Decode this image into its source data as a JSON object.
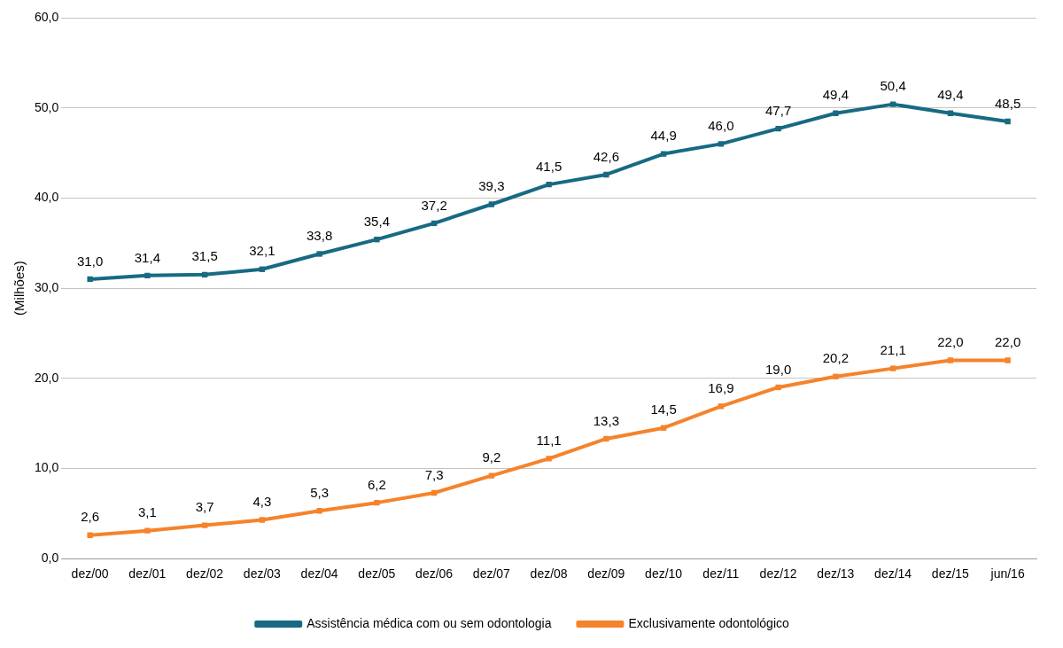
{
  "chart_data": {
    "type": "line",
    "ylabel": "(Milhões)",
    "categories": [
      "dez/00",
      "dez/01",
      "dez/02",
      "dez/03",
      "dez/04",
      "dez/05",
      "dez/06",
      "dez/07",
      "dez/08",
      "dez/09",
      "dez/10",
      "dez/11",
      "dez/12",
      "dez/13",
      "dez/14",
      "dez/15",
      "jun/16"
    ],
    "series": [
      {
        "name": "Assistência médica com ou sem odontologia",
        "color": "#176a82",
        "values": [
          31.0,
          31.4,
          31.5,
          32.1,
          33.8,
          35.4,
          37.2,
          39.3,
          41.5,
          42.6,
          44.9,
          46.0,
          47.7,
          49.4,
          50.4,
          49.4,
          48.5
        ],
        "value_labels": [
          "31,0",
          "31,4",
          "31,5",
          "32,1",
          "33,8",
          "35,4",
          "37,2",
          "39,3",
          "41,5",
          "42,6",
          "44,9",
          "46,0",
          "47,7",
          "49,4",
          "50,4",
          "49,4",
          "48,5"
        ]
      },
      {
        "name": "Exclusivamente odontológico",
        "color": "#f5832b",
        "values": [
          2.6,
          3.1,
          3.7,
          4.3,
          5.3,
          6.2,
          7.3,
          9.2,
          11.1,
          13.3,
          14.5,
          16.9,
          19.0,
          20.2,
          21.1,
          22.0,
          22.0
        ],
        "value_labels": [
          "2,6",
          "3,1",
          "3,7",
          "4,3",
          "5,3",
          "6,2",
          "7,3",
          "9,2",
          "11,1",
          "13,3",
          "14,5",
          "16,9",
          "19,0",
          "20,2",
          "21,1",
          "22,0",
          "22,0"
        ]
      }
    ],
    "ylim": [
      0,
      60
    ],
    "yticks": [
      {
        "value": 0,
        "label": "0,0"
      },
      {
        "value": 10,
        "label": "10,0"
      },
      {
        "value": 20,
        "label": "20,0"
      },
      {
        "value": 30,
        "label": "30,0"
      },
      {
        "value": 40,
        "label": "40,0"
      },
      {
        "value": 50,
        "label": "50,0"
      },
      {
        "value": 60,
        "label": "60,0"
      }
    ],
    "grid": "y",
    "legend": "bottom",
    "marker": "square",
    "line_style": "solid"
  }
}
